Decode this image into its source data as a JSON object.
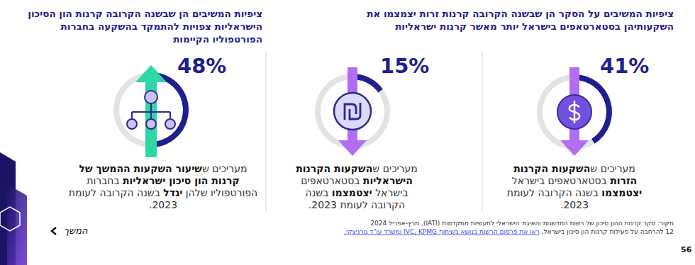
{
  "headings": [
    "ציפיות המשיבים על הסקר הן שבשנה הקרובה קרנות זרות יצמצמו את השקעותיהן בסטארטאפים בישראל יותר מאשר קרנות ישראליות",
    "ציפיות המשיבים הן שבשנה הקרובה קרנות הון הסיכון הישראליות צפויות להתמקד בהשקעה בחברות הפורטפוליו הקיימות"
  ],
  "chart_data": [
    {
      "type": "radial_bar",
      "values": [
        41
      ],
      "value_labels": [
        "41%"
      ],
      "ylim": [
        0,
        100
      ],
      "color": "#1f1f8f",
      "data_labels": true,
      "tick_labels": false,
      "grid": false,
      "caption": [
        {
          "text": "מעריכים ש",
          "bold": false
        },
        {
          "text": "השקעות הקרנות הזרות",
          "bold": true
        },
        {
          "text": " בסטארטאפים בישראל ",
          "bold": false
        },
        {
          "text": "יצטמצמו",
          "bold": true
        },
        {
          "text": " בשנה הקרובה לעומת 2023.",
          "bold": false
        }
      ]
    },
    {
      "type": "radial_bar",
      "values": [
        15
      ],
      "value_labels": [
        "15%"
      ],
      "ylim": [
        0,
        100
      ],
      "color": "#1f1f8f",
      "data_labels": true,
      "tick_labels": false,
      "grid": false,
      "caption": [
        {
          "text": "מעריכים ש",
          "bold": false
        },
        {
          "text": "השקעות הקרנות הישראליות",
          "bold": true
        },
        {
          "text": " בסטארטאפים בישראל ",
          "bold": false
        },
        {
          "text": "יצטמצמו",
          "bold": true
        },
        {
          "text": " בשנה הקרובה לעומת 2023.",
          "bold": false
        }
      ]
    },
    {
      "type": "radial_bar",
      "values": [
        48
      ],
      "value_labels": [
        "48%"
      ],
      "ylim": [
        0,
        100
      ],
      "color": "#1f1f8f",
      "data_labels": true,
      "tick_labels": false,
      "grid": false,
      "caption": [
        {
          "text": "מעריכים ש",
          "bold": false
        },
        {
          "text": "שיעור השקעות ההמשך של קרנות הון סיכון ישראליות",
          "bold": true
        },
        {
          "text": " בחברות הפורטפוליו שלהן ",
          "bold": false
        },
        {
          "text": "יגדל",
          "bold": true
        },
        {
          "text": " בשנה הקרובה לעומת 2023.",
          "bold": false
        }
      ]
    }
  ],
  "footer": {
    "source": "מקור: סקר קרנות ההון סיכון של רשות החדשנות והאיגוד הישראלי לתעשיות מתקדמות (IATI), מרץ-אפריל 2024",
    "note": [
      {
        "text": "12 להרחבה על פעילות קרנות הון סיכון בישראל, ",
        "link": false
      },
      {
        "text": "ראו את פרסום הרשות בנושא בשיתוף IVC, KPMG ומשרד עו\"ד גורניצקי.",
        "link": true
      }
    ],
    "next": "המשך",
    "page": "56"
  }
}
